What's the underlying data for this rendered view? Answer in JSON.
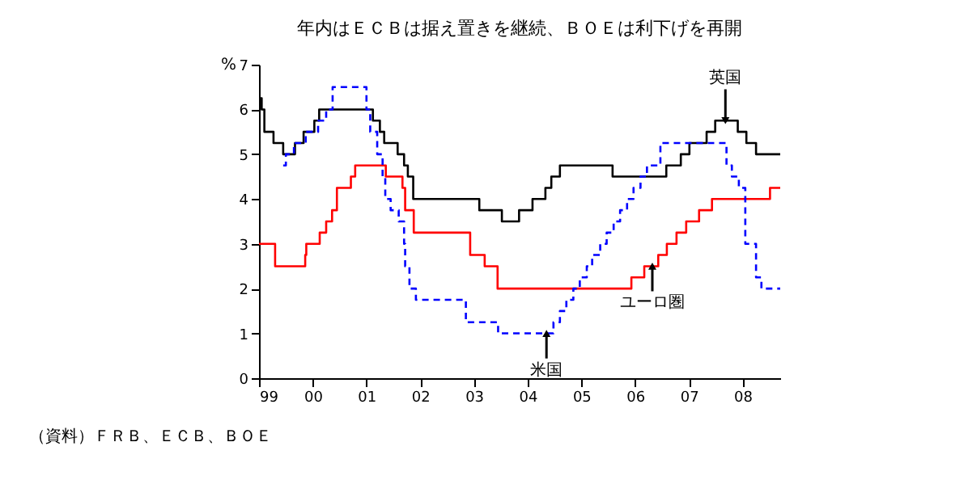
{
  "chart_data": {
    "type": "step",
    "title": "年内はＥＣＢは据え置きを継続、ＢＯＥは利下げを再開",
    "ylabel": "%",
    "xlim": [
      1999,
      2008.7
    ],
    "xticks": [
      {
        "value": 1999,
        "label": "99"
      },
      {
        "value": 2000,
        "label": "00"
      },
      {
        "value": 2001,
        "label": "01"
      },
      {
        "value": 2002,
        "label": "02"
      },
      {
        "value": 2003,
        "label": "03"
      },
      {
        "value": 2004,
        "label": "04"
      },
      {
        "value": 2005,
        "label": "05"
      },
      {
        "value": 2006,
        "label": "06"
      },
      {
        "value": 2007,
        "label": "07"
      },
      {
        "value": 2008,
        "label": "08"
      }
    ],
    "ylim": [
      0,
      7
    ],
    "yticks": [
      0,
      1,
      2,
      3,
      4,
      5,
      6,
      7
    ],
    "grid": false,
    "series": [
      {
        "color": "#000000",
        "line_style": "solid",
        "x": [
          1999.0,
          1999.05,
          1999.1,
          1999.27,
          1999.45,
          1999.67,
          1999.83,
          2000.03,
          2000.12,
          2001.12,
          2001.25,
          2001.33,
          2001.58,
          2001.7,
          2001.77,
          2001.87,
          2003.1,
          2003.52,
          2003.84,
          2004.09,
          2004.33,
          2004.44,
          2004.6,
          2005.58,
          2006.58,
          2006.85,
          2007.01,
          2007.33,
          2007.49,
          2007.91,
          2008.07,
          2008.25,
          2008.7
        ],
        "values": [
          6.25,
          6.0,
          5.5,
          5.25,
          5.0,
          5.25,
          5.5,
          5.75,
          6.0,
          5.75,
          5.5,
          5.25,
          5.0,
          4.75,
          4.5,
          4.0,
          3.75,
          3.5,
          3.75,
          4.0,
          4.25,
          4.5,
          4.75,
          4.5,
          4.75,
          5.0,
          5.25,
          5.5,
          5.75,
          5.5,
          5.25,
          5.0,
          5.0
        ]
      },
      {
        "color": "#ff0000",
        "line_style": "solid",
        "x": [
          1999.0,
          1999.3,
          1999.86,
          1999.88,
          2000.13,
          2000.25,
          2000.36,
          2000.45,
          2000.71,
          2000.79,
          2001.36,
          2001.67,
          2001.72,
          2001.88,
          2002.93,
          2003.2,
          2003.44,
          2005.93,
          2006.17,
          2006.43,
          2006.59,
          2006.77,
          2006.95,
          2007.19,
          2007.43,
          2008.51,
          2008.7
        ],
        "values": [
          3.0,
          2.5,
          2.75,
          3.0,
          3.25,
          3.5,
          3.75,
          4.25,
          4.5,
          4.75,
          4.5,
          4.25,
          3.75,
          3.25,
          2.75,
          2.5,
          2.0,
          2.25,
          2.5,
          2.75,
          3.0,
          3.25,
          3.5,
          3.75,
          4.0,
          4.25,
          4.25
        ]
      },
      {
        "color": "#0000ff",
        "line_style": "dashed",
        "x": [
          1999.45,
          1999.5,
          1999.65,
          1999.87,
          2000.1,
          2000.25,
          2000.37,
          2001.0,
          2001.07,
          2001.2,
          2001.3,
          2001.35,
          2001.45,
          2001.6,
          2001.7,
          2001.72,
          2001.8,
          2001.92,
          2002.85,
          2003.45,
          2004.48,
          2004.6,
          2004.72,
          2004.85,
          2004.97,
          2005.1,
          2005.2,
          2005.35,
          2005.47,
          2005.6,
          2005.72,
          2005.85,
          2005.97,
          2006.1,
          2006.22,
          2006.47,
          2007.7,
          2007.8,
          2007.93,
          2008.05,
          2008.25,
          2008.35,
          2008.7
        ],
        "values": [
          4.75,
          5.0,
          5.25,
          5.5,
          5.75,
          6.0,
          6.5,
          6.0,
          5.5,
          5.0,
          4.5,
          4.0,
          3.75,
          3.5,
          3.0,
          2.5,
          2.0,
          1.75,
          1.25,
          1.0,
          1.25,
          1.5,
          1.75,
          2.0,
          2.25,
          2.5,
          2.75,
          3.0,
          3.25,
          3.5,
          3.75,
          4.0,
          4.25,
          4.5,
          4.75,
          5.25,
          4.75,
          4.5,
          4.25,
          3.0,
          2.25,
          2.0,
          2.0
        ]
      }
    ],
    "annotations": [
      {
        "text": "英国",
        "x": 2007.68,
        "y": 5.75
      },
      {
        "text": "ユーロ圏",
        "x": 2006.32,
        "y": 2.5
      },
      {
        "text": "米国",
        "x": 2004.35,
        "y": 1.0
      },
      "（資料）ＦＲＢ、ＥＣＢ、ＢＯＥ"
    ]
  }
}
